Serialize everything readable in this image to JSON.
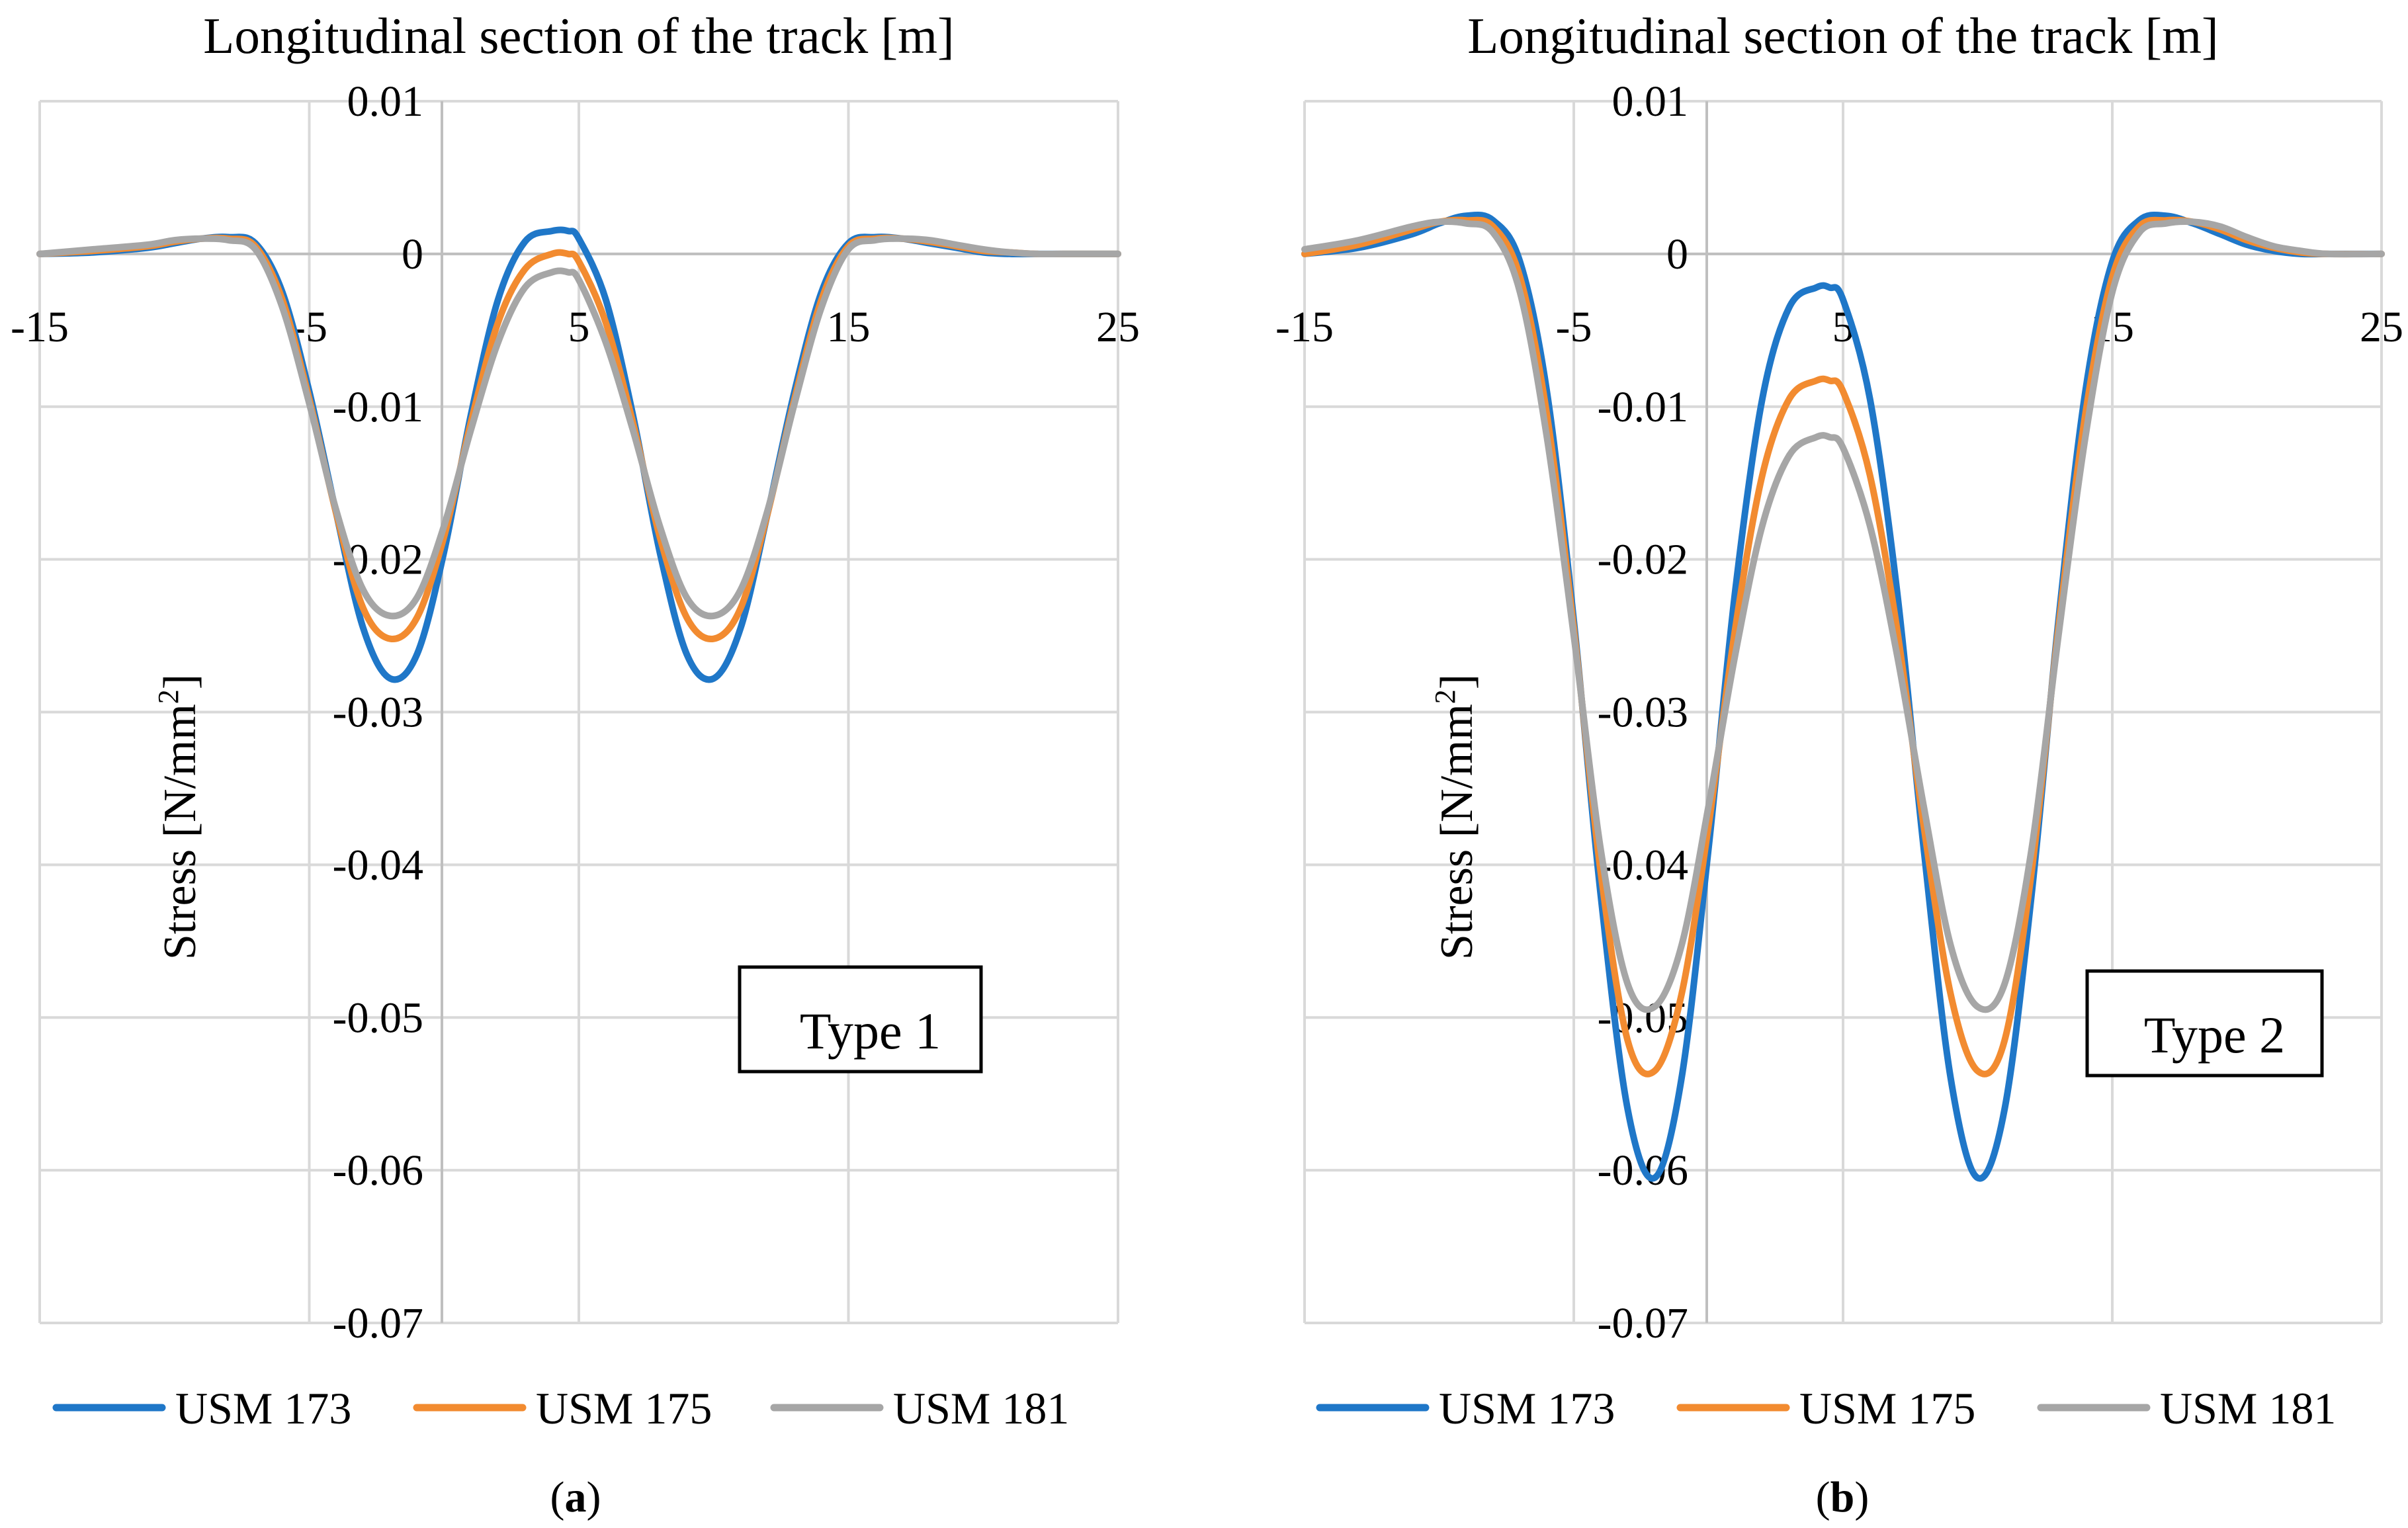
{
  "chart_data": [
    {
      "type": "line",
      "title": "Longitudinal section of the track [m]",
      "xlabel": "Longitudinal section of the track [m]",
      "ylabel": "Stress [N/mm2]",
      "ylabel_main": "Stress [N/mm",
      "ylabel_sup": "2",
      "ylabel_end": "]",
      "xlim": [
        -15,
        25
      ],
      "ylim": [
        -0.07,
        0.01
      ],
      "xticks": [
        -15,
        -5,
        5,
        15,
        25
      ],
      "xtick_labels": [
        "-15",
        "-5",
        "5",
        "15",
        "25"
      ],
      "yticks": [
        0.01,
        0,
        -0.01,
        -0.02,
        -0.03,
        -0.04,
        -0.05,
        -0.06,
        -0.07
      ],
      "ytick_labels": [
        "0.01",
        "0",
        "-0.01",
        "-0.02",
        "-0.03",
        "-0.04",
        "-0.05",
        "-0.06",
        "-0.07"
      ],
      "box_label": "Type 1",
      "caption_letter": "a",
      "x": [
        -15,
        -13,
        -11,
        -10,
        -9,
        -8,
        -7,
        -6,
        -5,
        -4,
        -3,
        -2,
        -1,
        0,
        1,
        2,
        3,
        4,
        4.6,
        5,
        6,
        7,
        8,
        9,
        10,
        11,
        12,
        13,
        14,
        15,
        16,
        17,
        18,
        19,
        20,
        21,
        22,
        23,
        25
      ],
      "series": [
        {
          "name": "USM 173",
          "color": "#1f77c8",
          "values": [
            0.0,
            0.0001,
            0.0004,
            0.0007,
            0.001,
            0.0011,
            0.0007,
            -0.0025,
            -0.009,
            -0.017,
            -0.0245,
            -0.0278,
            -0.0262,
            -0.0195,
            -0.0105,
            -0.003,
            0.0008,
            0.0015,
            0.0015,
            0.001,
            -0.003,
            -0.0105,
            -0.0195,
            -0.0262,
            -0.0278,
            -0.0245,
            -0.017,
            -0.009,
            -0.0025,
            0.0007,
            0.0011,
            0.001,
            0.0007,
            0.0004,
            0.0001,
            0.0,
            0.0,
            0.0,
            0.0
          ]
        },
        {
          "name": "USM 175",
          "color": "#f28b30",
          "values": [
            0.0,
            0.0002,
            0.0005,
            0.0008,
            0.001,
            0.001,
            0.0005,
            -0.003,
            -0.0095,
            -0.017,
            -0.0232,
            -0.0252,
            -0.0238,
            -0.0185,
            -0.011,
            -0.0045,
            -0.001,
            0.0,
            0.0,
            -0.0005,
            -0.0045,
            -0.011,
            -0.0185,
            -0.0238,
            -0.0252,
            -0.0232,
            -0.017,
            -0.0095,
            -0.003,
            0.0005,
            0.001,
            0.001,
            0.0008,
            0.0005,
            0.0002,
            0.0001,
            0.0,
            0.0,
            0.0
          ]
        },
        {
          "name": "USM 181",
          "color": "#a6a6a6",
          "values": [
            0.0,
            0.0003,
            0.0006,
            0.0009,
            0.001,
            0.0009,
            0.0003,
            -0.0035,
            -0.0098,
            -0.0168,
            -0.022,
            -0.0237,
            -0.0225,
            -0.0178,
            -0.0115,
            -0.0058,
            -0.0022,
            -0.0012,
            -0.0012,
            -0.0017,
            -0.0058,
            -0.0115,
            -0.0178,
            -0.0225,
            -0.0237,
            -0.022,
            -0.0168,
            -0.0098,
            -0.0035,
            0.0003,
            0.0009,
            0.001,
            0.0009,
            0.0006,
            0.0003,
            0.0001,
            0.0,
            0.0,
            0.0
          ]
        }
      ]
    },
    {
      "type": "line",
      "title": "Longitudinal section of the track [m]",
      "xlabel": "Longitudinal section of the track [m]",
      "ylabel": "Stress [N/mm2]",
      "ylabel_main": "Stress [N/mm",
      "ylabel_sup": "2",
      "ylabel_end": "]",
      "xlim": [
        -15,
        25
      ],
      "ylim": [
        -0.07,
        0.01
      ],
      "xticks": [
        -15,
        -5,
        5,
        15,
        25
      ],
      "xtick_labels": [
        "-15",
        "-5",
        "5",
        "15",
        "25"
      ],
      "yticks": [
        0.01,
        0,
        -0.01,
        -0.02,
        -0.03,
        -0.04,
        -0.05,
        -0.06,
        -0.07
      ],
      "ytick_labels": [
        "0.01",
        "0",
        "-0.01",
        "-0.02",
        "-0.03",
        "-0.04",
        "-0.05",
        "-0.06",
        "-0.07"
      ],
      "box_label": "Type 2",
      "caption_letter": "b",
      "x": [
        -15,
        -13,
        -11,
        -10,
        -9,
        -8,
        -7,
        -6,
        -5,
        -4,
        -3,
        -2,
        -1,
        0,
        1,
        2,
        3,
        4,
        4.5,
        5,
        6,
        7,
        8,
        9,
        10,
        11,
        12,
        13,
        14,
        15,
        16,
        17,
        18,
        19,
        20,
        21,
        22,
        23,
        25
      ],
      "series": [
        {
          "name": "USM 173",
          "color": "#1f77c8",
          "values": [
            0.0,
            0.0004,
            0.0013,
            0.002,
            0.0025,
            0.0022,
            -0.0005,
            -0.009,
            -0.024,
            -0.042,
            -0.056,
            -0.0605,
            -0.054,
            -0.039,
            -0.022,
            -0.0095,
            -0.0035,
            -0.0022,
            -0.0022,
            -0.003,
            -0.0095,
            -0.022,
            -0.039,
            -0.054,
            -0.0605,
            -0.056,
            -0.042,
            -0.024,
            -0.009,
            -0.0005,
            0.0022,
            0.0025,
            0.002,
            0.0013,
            0.0006,
            0.0002,
            0.0,
            0.0,
            0.0
          ]
        },
        {
          "name": "USM 175",
          "color": "#f28b30",
          "values": [
            0.0,
            0.0006,
            0.0016,
            0.0021,
            0.0022,
            0.0018,
            -0.0015,
            -0.0105,
            -0.0245,
            -0.0405,
            -0.0515,
            -0.0535,
            -0.0485,
            -0.0375,
            -0.0245,
            -0.0145,
            -0.0095,
            -0.0083,
            -0.0083,
            -0.009,
            -0.0145,
            -0.0245,
            -0.0375,
            -0.0485,
            -0.0535,
            -0.0515,
            -0.0405,
            -0.0245,
            -0.0105,
            -0.0015,
            0.0018,
            0.0022,
            0.0021,
            0.0016,
            0.0009,
            0.0004,
            0.0001,
            0.0,
            0.0
          ]
        },
        {
          "name": "USM 181",
          "color": "#a6a6a6",
          "values": [
            0.0003,
            0.0009,
            0.0018,
            0.0021,
            0.002,
            0.0014,
            -0.0025,
            -0.012,
            -0.025,
            -0.039,
            -0.0478,
            -0.0493,
            -0.0453,
            -0.0362,
            -0.0262,
            -0.0178,
            -0.0132,
            -0.012,
            -0.012,
            -0.0127,
            -0.0178,
            -0.0262,
            -0.0362,
            -0.0453,
            -0.0493,
            -0.0478,
            -0.039,
            -0.025,
            -0.012,
            -0.0025,
            0.0014,
            0.002,
            0.0021,
            0.0018,
            0.0011,
            0.0005,
            0.0002,
            0.0,
            0.0
          ]
        }
      ]
    }
  ]
}
